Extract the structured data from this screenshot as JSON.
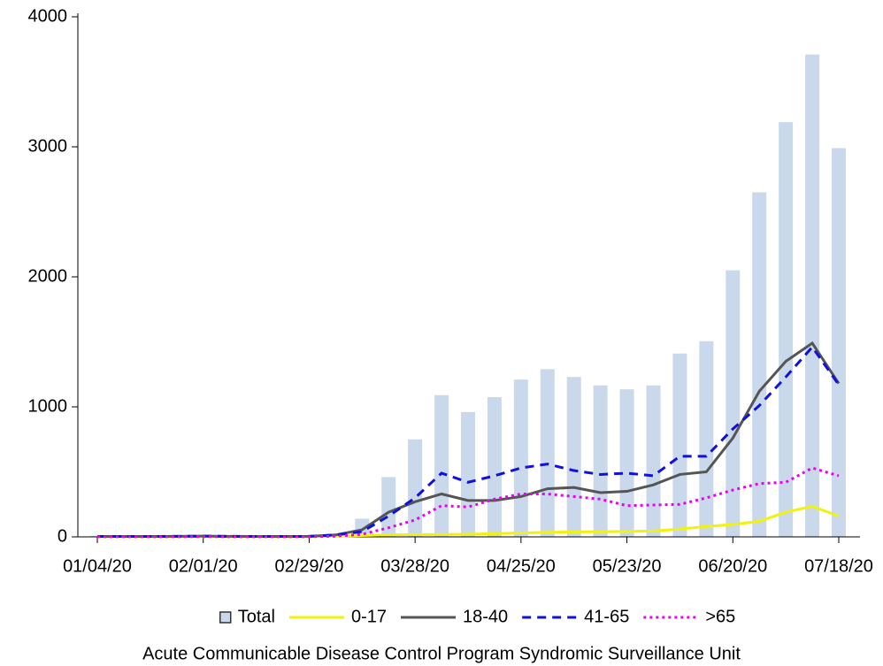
{
  "chart_data": {
    "type": "bar-line",
    "categories": [
      "01/04/20",
      null,
      null,
      null,
      "02/01/20",
      null,
      null,
      null,
      "02/29/20",
      null,
      null,
      null,
      "03/28/20",
      null,
      null,
      null,
      "04/25/20",
      null,
      null,
      null,
      "05/23/20",
      null,
      null,
      null,
      "06/20/20",
      null,
      null,
      null,
      "07/18/20"
    ],
    "series": [
      {
        "name": "Total",
        "kind": "bar",
        "color": "#c9d9eb",
        "values": [
          8,
          6,
          7,
          8,
          12,
          9,
          8,
          7,
          8,
          20,
          140,
          460,
          750,
          1090,
          960,
          1075,
          1210,
          1290,
          1230,
          1165,
          1135,
          1165,
          1410,
          1505,
          2050,
          2650,
          3190,
          3710,
          2990
        ]
      },
      {
        "name": "0-17",
        "kind": "line",
        "color": "#f2f20f",
        "dash": "solid",
        "values": [
          1,
          1,
          1,
          1,
          2,
          1,
          1,
          1,
          1,
          5,
          10,
          15,
          18,
          18,
          20,
          25,
          30,
          35,
          38,
          40,
          42,
          45,
          60,
          80,
          95,
          120,
          190,
          235,
          160
        ]
      },
      {
        "name": "18-40",
        "kind": "line",
        "color": "#555555",
        "dash": "solid",
        "values": [
          3,
          3,
          3,
          4,
          6,
          4,
          3,
          3,
          4,
          15,
          55,
          190,
          270,
          330,
          280,
          280,
          310,
          370,
          380,
          340,
          350,
          400,
          480,
          500,
          760,
          1120,
          1350,
          1490,
          1180
        ]
      },
      {
        "name": "41-65",
        "kind": "line",
        "color": "#1010e0",
        "dash": "dashed",
        "values": [
          3,
          3,
          3,
          4,
          6,
          4,
          3,
          3,
          4,
          15,
          40,
          160,
          300,
          490,
          420,
          470,
          530,
          560,
          510,
          480,
          490,
          470,
          620,
          620,
          830,
          1010,
          1230,
          1460,
          1170
        ]
      },
      {
        "name": ">65",
        "kind": "line",
        "color": "#ee00ee",
        "dash": "dotted",
        "values": [
          1,
          1,
          1,
          1,
          2,
          1,
          1,
          1,
          1,
          5,
          20,
          70,
          130,
          240,
          230,
          290,
          330,
          330,
          310,
          290,
          240,
          245,
          250,
          300,
          360,
          410,
          420,
          530,
          470
        ]
      }
    ],
    "ylim": [
      0,
      4000
    ],
    "yticks": [
      0,
      1000,
      2000,
      3000,
      4000
    ],
    "footnote": "Acute Communicable Disease Control Program Syndromic Surveillance Unit"
  }
}
